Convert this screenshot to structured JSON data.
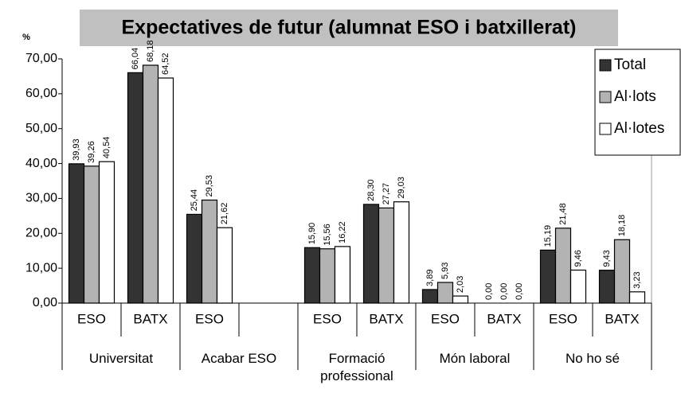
{
  "chart_data": {
    "type": "bar",
    "title": "Expectatives de futur (alumnat ESO i batxillerat)",
    "y_label": "%",
    "categories": [
      "ESO",
      "BATX",
      "ESO",
      null,
      "ESO",
      "BATX",
      "ESO",
      "BATX",
      "ESO",
      "BATX"
    ],
    "groups": [
      "Universitat",
      "Acabar ESO",
      "Formació professional",
      "Món laboral",
      "No ho sé"
    ],
    "series": [
      {
        "name": "Total",
        "color": "#333333",
        "values": [
          39.93,
          66.04,
          25.44,
          null,
          15.9,
          28.3,
          3.89,
          0.0,
          15.19,
          9.43
        ],
        "value_labels": [
          "39,93",
          "66,04",
          "25,44",
          null,
          "15,90",
          "28,30",
          "3,89",
          "0,00",
          "15,19",
          "9,43"
        ]
      },
      {
        "name": "Al·lots",
        "color": "#b3b3b3",
        "values": [
          39.26,
          68.18,
          29.53,
          null,
          15.56,
          27.27,
          5.93,
          0.0,
          21.48,
          18.18
        ],
        "value_labels": [
          "39,26",
          "68,18",
          "29,53",
          null,
          "15,56",
          "27,27",
          "5,93",
          "0,00",
          "21,48",
          "18,18"
        ]
      },
      {
        "name": "Al·lotes",
        "color": "#ffffff",
        "values": [
          40.54,
          64.52,
          21.62,
          null,
          16.22,
          29.03,
          2.03,
          0.0,
          9.46,
          3.23
        ],
        "value_labels": [
          "40,54",
          "64,52",
          "21,62",
          null,
          "16,22",
          "29,03",
          "2,03",
          "0,00",
          "9,46",
          "3,23"
        ]
      }
    ],
    "ylim": [
      0,
      70
    ],
    "yticks": [
      {
        "value": 0,
        "label": "0,00"
      },
      {
        "value": 10,
        "label": "10,00"
      },
      {
        "value": 20,
        "label": "20,00"
      },
      {
        "value": 30,
        "label": "30,00"
      },
      {
        "value": 40,
        "label": "40,00"
      },
      {
        "value": 50,
        "label": "50,00"
      },
      {
        "value": 60,
        "label": "60,00"
      },
      {
        "value": 70,
        "label": "70,00"
      }
    ],
    "legend": "top-right"
  }
}
